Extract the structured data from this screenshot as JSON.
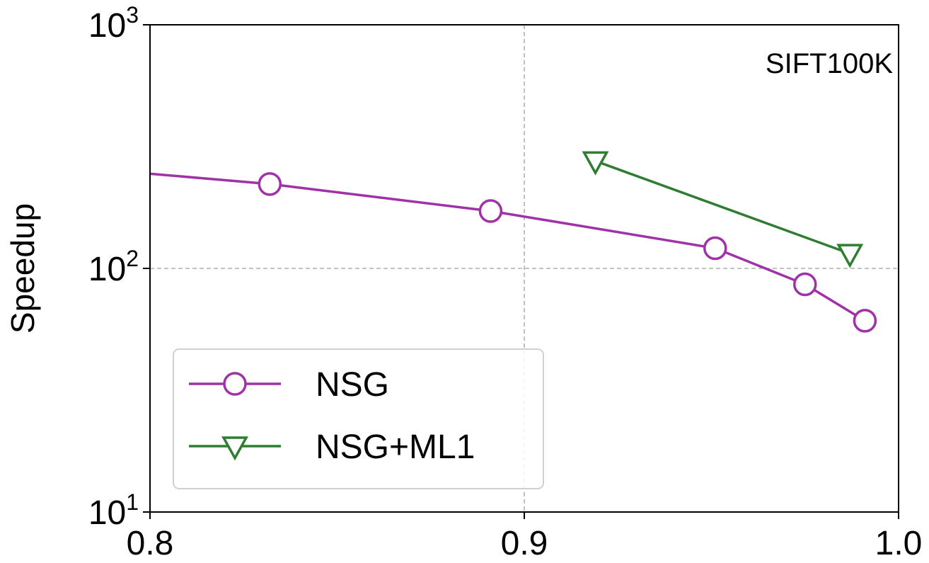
{
  "chart_data": {
    "type": "line",
    "title": "",
    "annotation": "SIFT100K",
    "xlabel": "",
    "ylabel": "Speedup",
    "xlim": [
      0.8,
      1.0
    ],
    "ylim": [
      10,
      1000
    ],
    "yscale": "log",
    "grid": {
      "style": "dashed",
      "x": [
        0.9
      ],
      "y": [
        100
      ]
    },
    "x_ticks": [
      {
        "value": 0.8,
        "label": "0.8"
      },
      {
        "value": 0.9,
        "label": "0.9"
      },
      {
        "value": 1.0,
        "label": "1.0"
      }
    ],
    "y_ticks": [
      {
        "value": 10,
        "base": "10",
        "exp": "1"
      },
      {
        "value": 100,
        "base": "10",
        "exp": "2"
      },
      {
        "value": 1000,
        "base": "10",
        "exp": "3"
      }
    ],
    "legend": {
      "placement": "lower-left"
    },
    "series": [
      {
        "name": "NSG",
        "color": "#a032a8",
        "marker": "circle",
        "x": [
          0.78,
          0.832,
          0.891,
          0.951,
          0.975,
          0.991
        ],
        "y": [
          260,
          222,
          172,
          121,
          86,
          61
        ]
      },
      {
        "name": "NSG+ML1",
        "color": "#2e7d32",
        "marker": "triangle-down",
        "x": [
          0.919,
          0.987
        ],
        "y": [
          276,
          115
        ]
      }
    ]
  }
}
